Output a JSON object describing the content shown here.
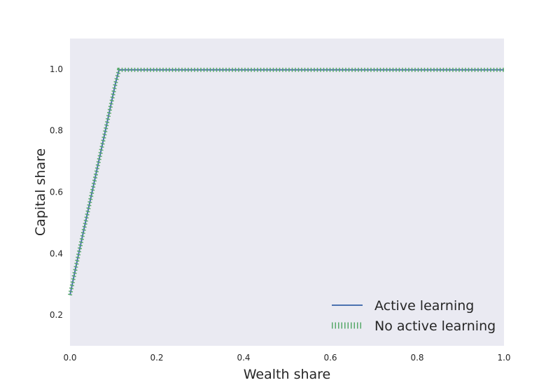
{
  "chart_data": {
    "type": "line",
    "xlabel": "Wealth share",
    "ylabel": "Capital share",
    "xlim": [
      0.0,
      1.0
    ],
    "ylim": [
      0.1,
      1.1
    ],
    "xticks": [
      "0.0",
      "0.2",
      "0.4",
      "0.6",
      "0.8",
      "1.0"
    ],
    "yticks": [
      "0.2",
      "0.4",
      "0.6",
      "0.8",
      "1.0"
    ],
    "grid": false,
    "legend_position": "bottom-right",
    "background_color": "#eaeaf2",
    "series": [
      {
        "name": "Active learning",
        "color": "#4c72b0",
        "style": "solid",
        "x": [
          0.0,
          0.02,
          0.05,
          0.08,
          0.105,
          0.113,
          0.2,
          0.4,
          0.6,
          0.8,
          1.0
        ],
        "y": [
          0.265,
          0.4,
          0.595,
          0.79,
          0.955,
          0.998,
          0.998,
          0.998,
          0.998,
          0.998,
          0.998
        ]
      },
      {
        "name": "No active learning",
        "color": "#55a868",
        "style": "hatched",
        "x": [
          0.0,
          0.02,
          0.05,
          0.08,
          0.105,
          0.113,
          0.2,
          0.4,
          0.6,
          0.8,
          1.0
        ],
        "y": [
          0.265,
          0.4,
          0.595,
          0.79,
          0.955,
          0.998,
          0.998,
          0.998,
          0.998,
          0.998,
          0.998
        ]
      }
    ]
  }
}
